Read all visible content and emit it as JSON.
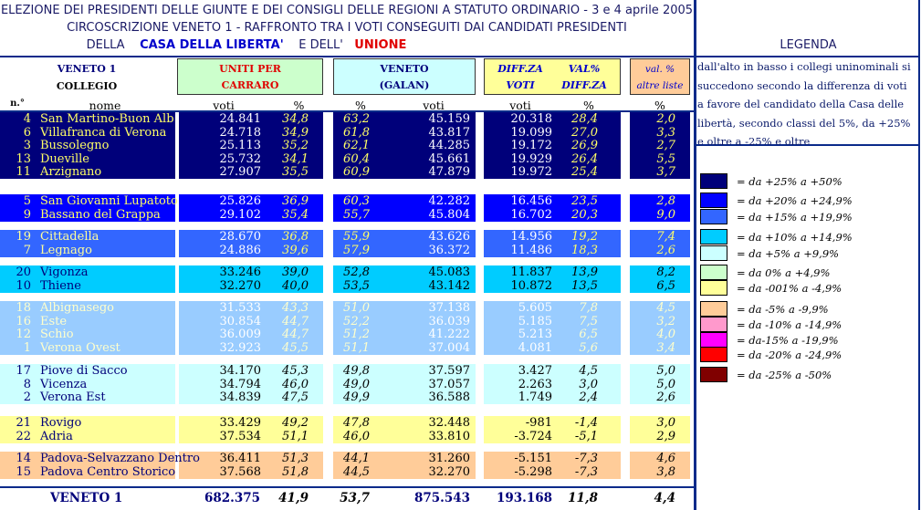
{
  "header": {
    "line1": "ELEZIONE DEI PRESIDENTI DELLE GIUNTE E DEI CONSIGLI DELLE REGIONI A STATUTO ORDINARIO - 3 e 4 aprile 2005",
    "line2": "CIRCOSCRIZIONE VENETO 1 - RAFFRONTO TRA I VOTI CONSEGUITI DAI CANDIDATI PRESIDENTI",
    "line3_a": "DELLA",
    "line3_b": "CASA DELLA LIBERTA'",
    "line3_c": "E DELL'",
    "line3_d": "UNIONE"
  },
  "columns": {
    "veneto1": "VENETO 1",
    "collegio": "COLLEGIO",
    "uniti1": "UNITI PER",
    "uniti2": "CARRARO",
    "veneto": "VENETO",
    "galan": "(GALAN)",
    "diff_voti1": "DIFF.ZA",
    "diff_voti2": "VOTI",
    "val_diff1": "VAL%",
    "val_diff2": "DIFF.ZA",
    "altre1": "val. %",
    "altre2": "altre liste",
    "sub_no": "n.°",
    "sub_nome": "nome",
    "sub_voti": "voti",
    "sub_pct": "%"
  },
  "colors": {
    "c25": "#00007a",
    "c20": "#0000ff",
    "c15": "#3366ff",
    "c10": "#00ccff",
    "c5": "#ccffff",
    "c0": "#ccffcc",
    "cm0": "#ffff99",
    "cm5": "#ffcc99",
    "cm10": "#ff99cc",
    "cm15": "#ff00ff",
    "cm20": "#ff0000",
    "cm25": "#800000",
    "cgroup15": "#99ccff"
  },
  "groups": [
    {
      "color": "c25",
      "top": 0,
      "rows": [
        {
          "n": "4",
          "nome": "San Martino-Buon Alb",
          "v1": "24.841",
          "p1": "34,8",
          "p2": "63,2",
          "v2": "45.159",
          "d": "20.318",
          "dp": "28,4",
          "a": "2,0"
        },
        {
          "n": "6",
          "nome": "Villafranca di Verona",
          "v1": "24.718",
          "p1": "34,9",
          "p2": "61,8",
          "v2": "43.817",
          "d": "19.099",
          "dp": "27,0",
          "a": "3,3"
        },
        {
          "n": "3",
          "nome": "Bussolegno",
          "v1": "25.113",
          "p1": "35,2",
          "p2": "62,1",
          "v2": "44.285",
          "d": "19.172",
          "dp": "26,9",
          "a": "2,7"
        },
        {
          "n": "13",
          "nome": "Dueville",
          "v1": "25.732",
          "p1": "34,1",
          "p2": "60,4",
          "v2": "45.661",
          "d": "19.929",
          "dp": "26,4",
          "a": "5,5"
        },
        {
          "n": "11",
          "nome": "Arzignano",
          "v1": "27.907",
          "p1": "35,5",
          "p2": "60,9",
          "v2": "47.879",
          "d": "19.972",
          "dp": "25,4",
          "a": "3,7"
        }
      ]
    },
    {
      "color": "c20",
      "top": 90,
      "rows": [
        {
          "n": "5",
          "nome": "San Giovanni Lupatoto",
          "v1": "25.826",
          "p1": "36,9",
          "p2": "60,3",
          "v2": "42.282",
          "d": "16.456",
          "dp": "23,5",
          "a": "2,8"
        },
        {
          "n": "9",
          "nome": "Bassano del Grappa",
          "v1": "29.102",
          "p1": "35,4",
          "p2": "55,7",
          "v2": "45.804",
          "d": "16.702",
          "dp": "20,3",
          "a": "9,0"
        }
      ]
    },
    {
      "color": "c15",
      "top": 129,
      "rows": [
        {
          "n": "19",
          "nome": "Cittadella",
          "v1": "28.670",
          "p1": "36,8",
          "p2": "55,9",
          "v2": "43.626",
          "d": "14.956",
          "dp": "19,2",
          "a": "7,4"
        },
        {
          "n": "7",
          "nome": "Legnago",
          "v1": "24.886",
          "p1": "39,6",
          "p2": "57,9",
          "v2": "36.372",
          "d": "11.486",
          "dp": "18,3",
          "a": "2,6"
        }
      ]
    },
    {
      "color": "c10",
      "top": 168,
      "rows": [
        {
          "n": "20",
          "nome": "Vigonza",
          "v1": "33.246",
          "p1": "39,0",
          "p2": "52,8",
          "v2": "45.083",
          "d": "11.837",
          "dp": "13,9",
          "a": "8,2"
        },
        {
          "n": "10",
          "nome": "Thiene",
          "v1": "32.270",
          "p1": "40,0",
          "p2": "53,5",
          "v2": "43.142",
          "d": "10.872",
          "dp": "13,5",
          "a": "6,5"
        }
      ]
    },
    {
      "color": "cgroup15",
      "top": 207,
      "rows": [
        {
          "n": "18",
          "nome": "Albignasego",
          "v1": "31.533",
          "p1": "43,3",
          "p2": "51,0",
          "v2": "37.138",
          "d": "5.605",
          "dp": "7,8",
          "a": "4,5"
        },
        {
          "n": "16",
          "nome": "Este",
          "v1": "30.854",
          "p1": "44,7",
          "p2": "52,2",
          "v2": "36.039",
          "d": "5.185",
          "dp": "7,5",
          "a": "3,2"
        },
        {
          "n": "12",
          "nome": "Schio",
          "v1": "36.009",
          "p1": "44,7",
          "p2": "51,2",
          "v2": "41.222",
          "d": "5.213",
          "dp": "6,5",
          "a": "4,0"
        },
        {
          "n": "1",
          "nome": "Verona Ovest",
          "v1": "32.923",
          "p1": "45,5",
          "p2": "51,1",
          "v2": "37.004",
          "d": "4.081",
          "dp": "5,6",
          "a": "3,4"
        }
      ]
    },
    {
      "color": "c5",
      "top": 276,
      "rows": [
        {
          "n": "17",
          "nome": "Piove di Sacco",
          "v1": "34.170",
          "p1": "45,3",
          "p2": "49,8",
          "v2": "37.597",
          "d": "3.427",
          "dp": "4,5",
          "a": "5,0"
        },
        {
          "n": "8",
          "nome": "Vicenza",
          "v1": "34.794",
          "p1": "46,0",
          "p2": "49,0",
          "v2": "37.057",
          "d": "2.263",
          "dp": "3,0",
          "a": "5,0"
        },
        {
          "n": "2",
          "nome": "Verona Est",
          "v1": "34.839",
          "p1": "47,5",
          "p2": "49,9",
          "v2": "36.588",
          "d": "1.749",
          "dp": "2,4",
          "a": "2,6"
        }
      ]
    },
    {
      "color": "cm0",
      "top": 333,
      "rows": [
        {
          "n": "21",
          "nome": "Rovigo",
          "v1": "33.429",
          "p1": "49,2",
          "p2": "47,8",
          "v2": "32.448",
          "d": "-981",
          "dp": "-1,4",
          "a": "3,0"
        },
        {
          "n": "22",
          "nome": "Adria",
          "v1": "37.534",
          "p1": "51,1",
          "p2": "46,0",
          "v2": "33.810",
          "d": "-3.724",
          "dp": "-5,1",
          "a": "2,9"
        }
      ]
    },
    {
      "color": "cm5",
      "top": 372,
      "rows": [
        {
          "n": "14",
          "nome": "Padova-Selvazzano Dentro",
          "v1": "36.411",
          "p1": "51,3",
          "p2": "44,1",
          "v2": "31.260",
          "d": "-5.151",
          "dp": "-7,3",
          "a": "4,6"
        },
        {
          "n": "15",
          "nome": "Padova Centro Storico",
          "v1": "37.568",
          "p1": "51,8",
          "p2": "44,5",
          "v2": "32.270",
          "d": "-5.298",
          "dp": "-7,3",
          "a": "3,8"
        }
      ]
    }
  ],
  "totals": {
    "label": "VENETO 1",
    "v1": "682.375",
    "p1": "41,9",
    "p2": "53,7",
    "v2": "875.543",
    "d": "193.168",
    "dp": "11,8",
    "a": "4,4"
  },
  "legend": {
    "title": "LEGENDA",
    "desc": "dall'alto in basso i collegi uninominali si succedono secondo la differenza di voti a favore del candidato della Casa delle libertà, secondo classi del 5%, da +25% e oltre a -25% e oltre",
    "items": [
      {
        "color": "c25",
        "label": "= da +25% a +50%",
        "top": 190
      },
      {
        "color": "c20",
        "label": "= da +20% a +24,9%",
        "top": 211
      },
      {
        "color": "c15",
        "label": "= da +15% a +19,9%",
        "top": 229
      },
      {
        "color": "c10",
        "label": "= da +10% a +14,9%",
        "top": 251
      },
      {
        "color": "c5",
        "label": "= da +5% a +9,9%",
        "top": 269
      },
      {
        "color": "c0",
        "label": "= da 0% a +4,9%",
        "top": 290
      },
      {
        "color": "cm0",
        "label": "= da -001% a -4,9%",
        "top": 307
      },
      {
        "color": "cm5",
        "label": "= da -5% a -9,9%",
        "top": 330
      },
      {
        "color": "cm10",
        "label": "= da -10% a -14,9%",
        "top": 347
      },
      {
        "color": "cm15",
        "label": "= da-15% a -19,9%",
        "top": 364
      },
      {
        "color": "cm20",
        "label": "= da -20% a -24,9%",
        "top": 380
      },
      {
        "color": "cm25",
        "label": "= da -25% a -50%",
        "top": 402
      }
    ]
  }
}
